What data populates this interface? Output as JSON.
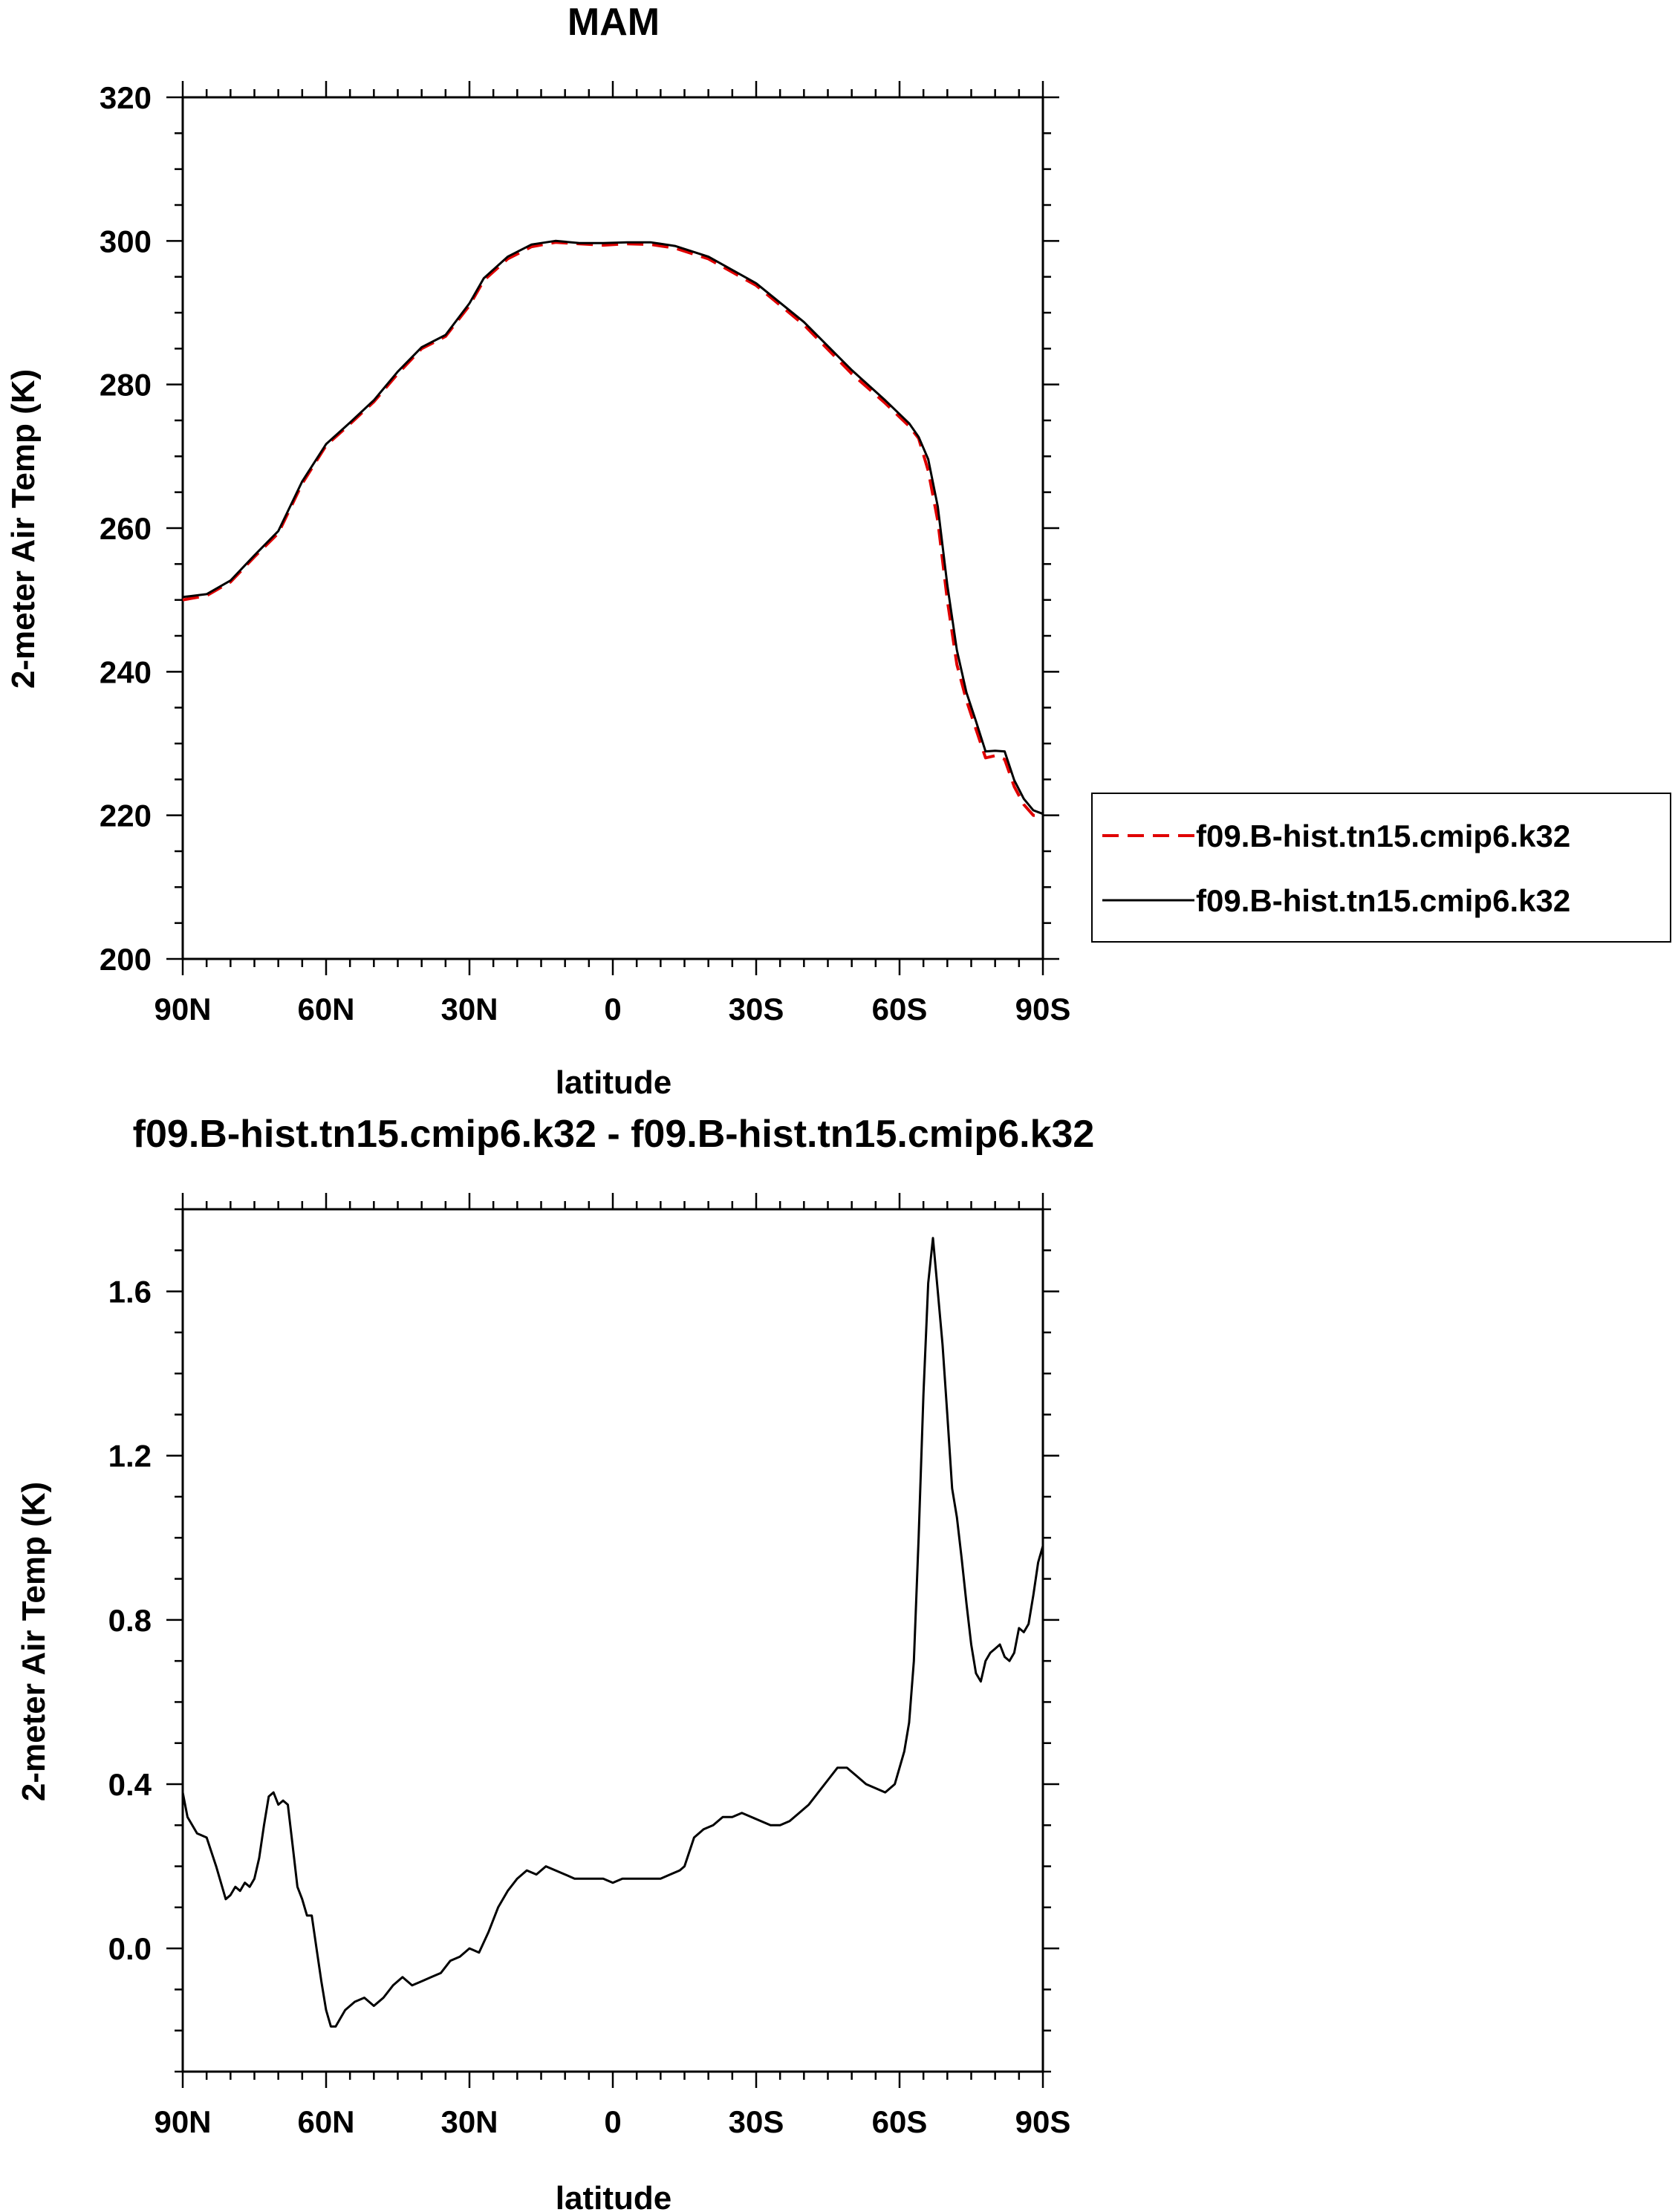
{
  "colors": {
    "dashed_series": "#e00000",
    "solid_series": "#000000",
    "axes": "#000000"
  },
  "chart_data": [
    {
      "type": "line",
      "title": "MAM",
      "xlabel": "latitude",
      "ylabel": "2-meter Air Temp (K)",
      "xlim": [
        90,
        -90
      ],
      "ylim": [
        200,
        320
      ],
      "xticks": [
        90,
        60,
        30,
        0,
        -30,
        -60,
        -90
      ],
      "xtick_labels": [
        "90N",
        "60N",
        "30N",
        "0",
        "30S",
        "60S",
        "90S"
      ],
      "yticks": [
        200,
        220,
        240,
        260,
        280,
        300,
        320
      ],
      "ytick_labels": [
        "200",
        "220",
        "240",
        "260",
        "280",
        "300",
        "320"
      ],
      "grid": false,
      "legend_position": "right",
      "series": [
        {
          "name": "f09.B-hist.tn15.cmip6.k32",
          "style": "dashed",
          "color": "#e00000",
          "x": [
            90,
            85,
            80,
            75,
            70,
            65,
            60,
            55,
            50,
            45,
            40,
            35,
            30,
            27,
            22,
            17,
            12,
            7,
            2,
            -3,
            -8,
            -13,
            -20,
            -30,
            -40,
            -50,
            -57,
            -62,
            -64,
            -66,
            -68,
            -70,
            -72,
            -74,
            -76,
            -78,
            -80,
            -82,
            -84,
            -86,
            -88,
            -90
          ],
          "y": [
            250.0,
            250.6,
            252.5,
            256,
            259.3,
            266.2,
            271.5,
            274.5,
            277.6,
            281.5,
            285,
            286.7,
            291,
            294.5,
            297.5,
            299.2,
            299.8,
            299.6,
            299.4,
            299.6,
            299.5,
            299,
            297.5,
            293.8,
            288.3,
            281.5,
            277.4,
            274.2,
            272.5,
            268,
            261,
            250,
            241,
            236,
            232,
            228,
            228.3,
            227.8,
            224,
            221.5,
            220,
            220
          ]
        },
        {
          "name": "f09.B-hist.tn15.cmip6.k32",
          "style": "solid",
          "color": "#000000",
          "x": [
            90,
            85,
            80,
            75,
            70,
            65,
            60,
            55,
            50,
            45,
            40,
            35,
            30,
            27,
            22,
            17,
            12,
            7,
            2,
            -3,
            -8,
            -13,
            -20,
            -30,
            -40,
            -50,
            -57,
            -62,
            -64,
            -66,
            -68,
            -70,
            -72,
            -74,
            -76,
            -78,
            -80,
            -82,
            -84,
            -86,
            -88,
            -90
          ],
          "y": [
            250.4,
            250.8,
            252.7,
            256.2,
            259.6,
            266.5,
            271.7,
            274.7,
            277.8,
            281.8,
            285.2,
            286.9,
            291.3,
            294.8,
            297.8,
            299.5,
            300.0,
            299.7,
            299.7,
            299.8,
            299.8,
            299.3,
            297.8,
            294.1,
            288.7,
            282.0,
            277.8,
            274.6,
            272.7,
            269.6,
            263.0,
            252.1,
            243.0,
            237.1,
            233.1,
            228.9,
            229.0,
            228.9,
            224.9,
            222.3,
            220.7,
            220.2
          ]
        }
      ]
    },
    {
      "type": "line",
      "title": "f09.B-hist.tn15.cmip6.k32 - f09.B-hist.tn15.cmip6.k32",
      "xlabel": "latitude",
      "ylabel": "2-meter Air Temp (K)",
      "xlim": [
        90,
        -90
      ],
      "ylim": [
        -0.3,
        1.8
      ],
      "xticks": [
        90,
        60,
        30,
        0,
        -30,
        -60,
        -90
      ],
      "xtick_labels": [
        "90N",
        "60N",
        "30N",
        "0",
        "30S",
        "60S",
        "90S"
      ],
      "yticks": [
        0.0,
        0.4,
        0.8,
        1.2,
        1.6
      ],
      "ytick_labels": [
        "0.0",
        "0.4",
        "0.8",
        "1.2",
        "1.6"
      ],
      "grid": false,
      "series": [
        {
          "style": "solid",
          "color": "#000000",
          "x": [
            90,
            89,
            87,
            85,
            83,
            81,
            80,
            79,
            78,
            77,
            76,
            75,
            74,
            73,
            72,
            71,
            70,
            69,
            68,
            67,
            66,
            65,
            64,
            63,
            62,
            61,
            60,
            59,
            58,
            57,
            56,
            54,
            52,
            50,
            48,
            46,
            44,
            42,
            40,
            38,
            36,
            34,
            32,
            30,
            28,
            26,
            24,
            22,
            20,
            18,
            16,
            14,
            12,
            10,
            8,
            6,
            4,
            2,
            0,
            -2,
            -4,
            -6,
            -8,
            -10,
            -12,
            -14,
            -15,
            -17,
            -19,
            -21,
            -23,
            -25,
            -27,
            -29,
            -31,
            -33,
            -35,
            -37,
            -39,
            -41,
            -43,
            -45,
            -47,
            -49,
            -51,
            -53,
            -55,
            -57,
            -59,
            -60,
            -61,
            -62,
            -63,
            -64,
            -65,
            -66,
            -67,
            -68,
            -69,
            -70,
            -71,
            -72,
            -73,
            -74,
            -75,
            -76,
            -77,
            -78,
            -79,
            -80,
            -81,
            -82,
            -83,
            -84,
            -85,
            -86,
            -87,
            -88,
            -89,
            -90
          ],
          "y": [
            0.38,
            0.32,
            0.28,
            0.27,
            0.2,
            0.12,
            0.13,
            0.15,
            0.14,
            0.16,
            0.15,
            0.17,
            0.22,
            0.3,
            0.37,
            0.38,
            0.35,
            0.36,
            0.35,
            0.25,
            0.15,
            0.12,
            0.08,
            0.08,
            0.0,
            -0.08,
            -0.15,
            -0.19,
            -0.19,
            -0.17,
            -0.15,
            -0.13,
            -0.12,
            -0.14,
            -0.12,
            -0.09,
            -0.07,
            -0.09,
            -0.08,
            -0.07,
            -0.06,
            -0.03,
            -0.02,
            0.0,
            -0.01,
            0.04,
            0.1,
            0.14,
            0.17,
            0.19,
            0.18,
            0.2,
            0.19,
            0.18,
            0.17,
            0.17,
            0.17,
            0.17,
            0.16,
            0.17,
            0.17,
            0.17,
            0.17,
            0.17,
            0.18,
            0.19,
            0.2,
            0.27,
            0.29,
            0.3,
            0.32,
            0.32,
            0.33,
            0.32,
            0.31,
            0.3,
            0.3,
            0.31,
            0.33,
            0.35,
            0.38,
            0.41,
            0.44,
            0.44,
            0.42,
            0.4,
            0.39,
            0.38,
            0.4,
            0.44,
            0.48,
            0.55,
            0.7,
            1.0,
            1.35,
            1.62,
            1.73,
            1.6,
            1.47,
            1.3,
            1.12,
            1.05,
            0.95,
            0.84,
            0.74,
            0.67,
            0.65,
            0.7,
            0.72,
            0.73,
            0.74,
            0.71,
            0.7,
            0.72,
            0.78,
            0.77,
            0.79,
            0.86,
            0.94,
            0.98
          ]
        }
      ]
    }
  ]
}
